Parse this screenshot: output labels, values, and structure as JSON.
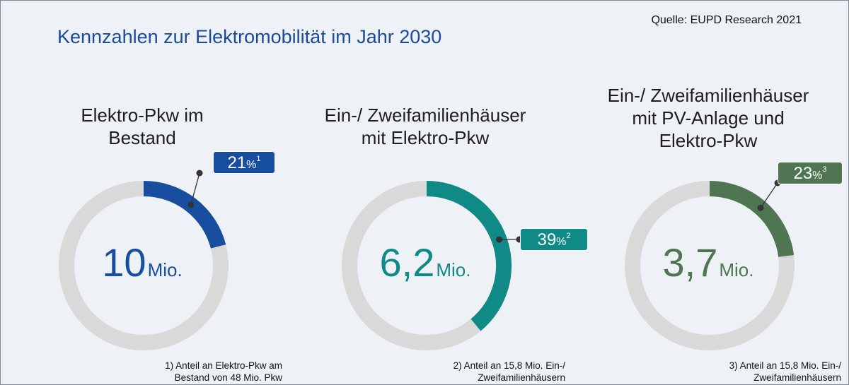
{
  "source": "Quelle: EUPD Research 2021",
  "title": "Kennzahlen zur Elektromobilität im Jahr 2030",
  "chart_data": [
    {
      "type": "pie",
      "style": "donut",
      "title_lines": [
        "Elektro-Pkw im",
        "Bestand"
      ],
      "center_value": "10",
      "center_unit": "Mio.",
      "share_percent": 21,
      "badge_number": "21",
      "badge_percent": "%",
      "badge_footnote": "1",
      "color": "#174ea0",
      "remainder_color": "#d9d9d9",
      "footnote_lines": [
        "1) Anteil an Elektro-Pkw am",
        "Bestand von 48 Mio. Pkw"
      ]
    },
    {
      "type": "pie",
      "style": "donut",
      "title_lines": [
        "Ein-/ Zweifamilienhäuser",
        "mit Elektro-Pkw"
      ],
      "center_value": "6,2",
      "center_unit": "Mio.",
      "share_percent": 39,
      "badge_number": "39",
      "badge_percent": "%",
      "badge_footnote": "2",
      "color": "#0f8a86",
      "remainder_color": "#d9d9d9",
      "footnote_lines": [
        "2) Anteil an 15,8 Mio. Ein-/",
        "Zweifamilienhäusern"
      ]
    },
    {
      "type": "pie",
      "style": "donut",
      "title_lines": [
        "Ein-/ Zweifamilienhäuser",
        "mit PV-Anlage und",
        "Elektro-Pkw"
      ],
      "center_value": "3,7",
      "center_unit": "Mio.",
      "share_percent": 23,
      "badge_number": "23",
      "badge_percent": "%",
      "badge_footnote": "3",
      "color": "#4f7552",
      "remainder_color": "#d9d9d9",
      "footnote_lines": [
        "3) Anteil an 15,8 Mio. Ein-/",
        "Zweifamilienhäusern"
      ]
    }
  ]
}
